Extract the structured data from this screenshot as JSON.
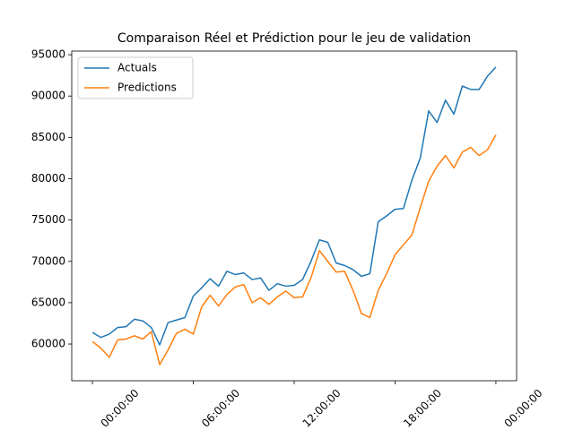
{
  "chart_data": {
    "type": "line",
    "title": "Comparaison Réel et Prédiction pour le jeu de validation",
    "x": [
      0,
      0.5,
      1,
      1.5,
      2,
      2.5,
      3,
      3.5,
      4,
      4.5,
      5,
      5.5,
      6,
      6.5,
      7,
      7.5,
      8,
      8.5,
      9,
      9.5,
      10,
      10.5,
      11,
      11.5,
      12,
      12.5,
      13,
      13.5,
      14,
      14.5,
      15,
      15.5,
      16,
      16.5,
      17,
      17.5,
      18,
      18.5,
      19,
      19.5,
      20,
      20.5,
      21,
      21.5,
      22,
      22.5,
      23,
      23.5,
      24
    ],
    "series": [
      {
        "name": "Actuals",
        "color": "#1f77b4",
        "values": [
          61400,
          60800,
          61200,
          62000,
          62100,
          63000,
          62800,
          62000,
          59900,
          62600,
          62900,
          63200,
          65800,
          66800,
          67900,
          67000,
          68800,
          68400,
          68600,
          67800,
          68000,
          66500,
          67300,
          67000,
          67100,
          67800,
          70000,
          72600,
          72300,
          69800,
          69500,
          69000,
          68200,
          68500,
          74800,
          75500,
          76300,
          76400,
          79800,
          82500,
          88200,
          86800,
          89500,
          87800,
          91200,
          90800,
          90800,
          92400,
          93500
        ]
      },
      {
        "name": "Predictions",
        "color": "#ff7f0e",
        "values": [
          60300,
          59500,
          58400,
          60500,
          60600,
          61000,
          60600,
          61500,
          57500,
          59300,
          61300,
          61800,
          61200,
          64500,
          65900,
          64600,
          66000,
          66900,
          67200,
          65000,
          65600,
          64800,
          65700,
          66400,
          65600,
          65700,
          68000,
          71300,
          70000,
          68700,
          68800,
          66500,
          63700,
          63200,
          66500,
          68500,
          70800,
          72000,
          73200,
          76500,
          79700,
          81500,
          82800,
          81300,
          83200,
          83800,
          82800,
          83500,
          85300
        ]
      }
    ],
    "xlim": [
      -1.23,
      25.23
    ],
    "xticks": [
      {
        "value": 0,
        "label": "00:00:00"
      },
      {
        "value": 6,
        "label": "06:00:00"
      },
      {
        "value": 12,
        "label": "12:00:00"
      },
      {
        "value": 18,
        "label": "18:00:00"
      },
      {
        "value": 24,
        "label": "00:00:00"
      }
    ],
    "ylim": [
      55560,
      95440
    ],
    "yticks": [
      60000,
      65000,
      70000,
      75000,
      80000,
      85000,
      90000,
      95000
    ],
    "legend": "upper left"
  }
}
